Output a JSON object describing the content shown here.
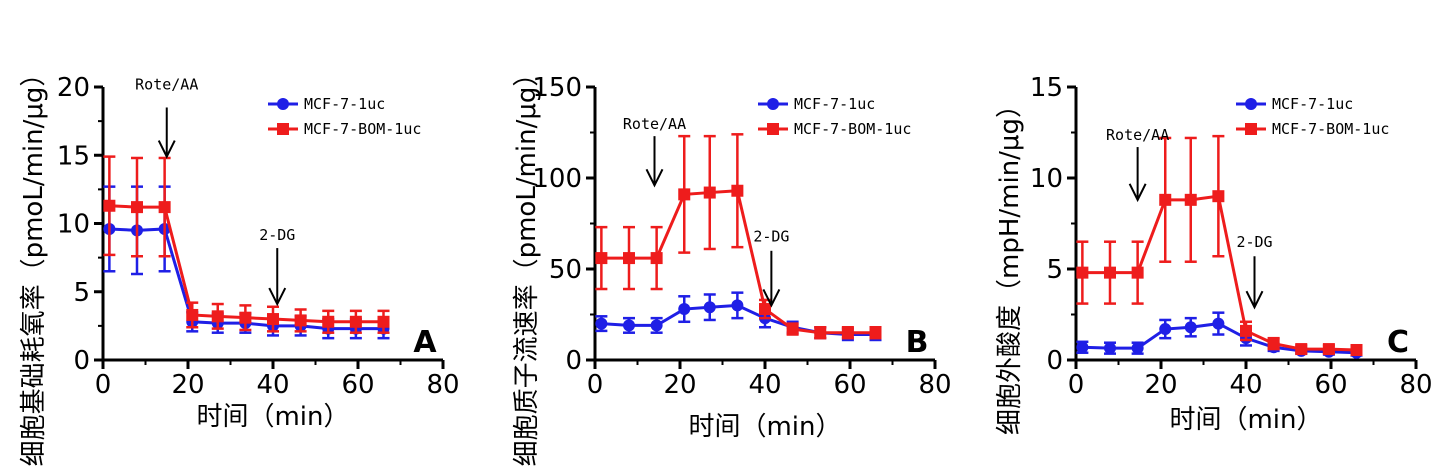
{
  "colors": {
    "blue": "#1f1fe6",
    "red": "#ee1c1c",
    "axis": "#000000"
  },
  "chart_data": [
    {
      "type": "line",
      "panel_label": "A",
      "ylabel": "细胞基础耗氧率（pmoL/min/μg）",
      "xlabel": "时间（min）",
      "xlim": [
        0,
        80
      ],
      "ylim": [
        0,
        20
      ],
      "xticks": [
        "0",
        "20",
        "40",
        "60",
        "80"
      ],
      "yticks": [
        "0",
        "5",
        "10",
        "15",
        "20"
      ],
      "x": [
        1.5,
        8,
        14.5,
        21,
        27,
        33.5,
        40,
        46.5,
        53,
        59.5,
        66
      ],
      "series": [
        {
          "name": "MCF-7-1uc",
          "color": "#1f1fe6",
          "marker": "circle",
          "values": [
            9.6,
            9.5,
            9.6,
            2.8,
            2.7,
            2.7,
            2.5,
            2.5,
            2.3,
            2.3,
            2.3
          ],
          "errors": [
            3.1,
            3.2,
            3.1,
            0.7,
            0.7,
            0.7,
            0.7,
            0.7,
            0.7,
            0.7,
            0.7
          ]
        },
        {
          "name": "MCF-7-BOM-1uc",
          "color": "#ee1c1c",
          "marker": "square",
          "values": [
            11.3,
            11.2,
            11.2,
            3.3,
            3.2,
            3.1,
            3.0,
            2.9,
            2.8,
            2.8,
            2.8
          ],
          "errors": [
            3.6,
            3.6,
            3.6,
            0.9,
            0.9,
            0.9,
            0.9,
            0.8,
            0.8,
            0.8,
            0.8
          ]
        }
      ],
      "annotations": [
        {
          "text": "Rote/AA",
          "x": 15,
          "text_y": 19.8,
          "arrow_from": 18.5,
          "arrow_to": 14.9
        },
        {
          "text": "2-DG",
          "x": 41,
          "text_y": 8.8,
          "arrow_from": 8.2,
          "arrow_to": 4.1
        }
      ]
    },
    {
      "type": "line",
      "panel_label": "B",
      "ylabel": "细胞质子流速率（pmoL/min/μg）",
      "xlabel": "时间（min）",
      "xlim": [
        0,
        80
      ],
      "ylim": [
        0,
        150
      ],
      "xticks": [
        "0",
        "20",
        "40",
        "60",
        "80"
      ],
      "yticks": [
        "0",
        "50",
        "100",
        "150"
      ],
      "x": [
        1.5,
        8,
        14.5,
        21,
        27,
        33.5,
        40,
        46.5,
        53,
        59.5,
        66
      ],
      "series": [
        {
          "name": "MCF-7-1uc",
          "color": "#1f1fe6",
          "marker": "circle",
          "values": [
            20,
            19,
            19,
            28,
            29,
            30,
            23,
            18,
            15,
            14,
            14
          ],
          "errors": [
            4,
            4,
            4,
            7,
            7,
            7,
            5,
            3,
            3,
            3,
            3
          ]
        },
        {
          "name": "MCF-7-BOM-1uc",
          "color": "#ee1c1c",
          "marker": "square",
          "values": [
            56,
            56,
            56,
            91,
            92,
            93,
            28,
            17,
            15,
            15,
            15
          ],
          "errors": [
            17,
            17,
            17,
            32,
            31,
            31,
            5,
            3,
            3,
            3,
            3
          ]
        }
      ],
      "annotations": [
        {
          "text": "Rote/AA",
          "x": 14,
          "text_y": 127,
          "arrow_from": 123,
          "arrow_to": 96
        },
        {
          "text": "2-DG",
          "x": 41.5,
          "text_y": 65,
          "arrow_from": 60,
          "arrow_to": 30
        }
      ]
    },
    {
      "type": "line",
      "panel_label": "C",
      "ylabel": "细胞外酸度（mpH/min/μg）",
      "xlabel": "时间（min）",
      "xlim": [
        0,
        80
      ],
      "ylim": [
        0,
        15
      ],
      "xticks": [
        "0",
        "20",
        "40",
        "60",
        "80"
      ],
      "yticks": [
        "0",
        "5",
        "10",
        "15"
      ],
      "x": [
        1.5,
        8,
        14.5,
        21,
        27,
        33.5,
        40,
        46.5,
        53,
        59.5,
        66
      ],
      "series": [
        {
          "name": "MCF-7-1uc",
          "color": "#1f1fe6",
          "marker": "circle",
          "values": [
            0.7,
            0.65,
            0.65,
            1.7,
            1.8,
            2.0,
            1.2,
            0.7,
            0.5,
            0.45,
            0.4
          ],
          "errors": [
            0.3,
            0.3,
            0.3,
            0.5,
            0.5,
            0.6,
            0.4,
            0.2,
            0.15,
            0.15,
            0.15
          ]
        },
        {
          "name": "MCF-7-BOM-1uc",
          "color": "#ee1c1c",
          "marker": "square",
          "values": [
            4.8,
            4.8,
            4.8,
            8.8,
            8.8,
            9.0,
            1.6,
            0.9,
            0.6,
            0.6,
            0.55
          ],
          "errors": [
            1.7,
            1.7,
            1.7,
            3.4,
            3.4,
            3.3,
            0.5,
            0.3,
            0.2,
            0.2,
            0.2
          ]
        }
      ],
      "annotations": [
        {
          "text": "Rote/AA",
          "x": 14.5,
          "text_y": 12.1,
          "arrow_from": 11.7,
          "arrow_to": 8.8
        },
        {
          "text": "2-DG",
          "x": 42,
          "text_y": 6.2,
          "arrow_from": 5.7,
          "arrow_to": 2.9
        }
      ]
    }
  ]
}
